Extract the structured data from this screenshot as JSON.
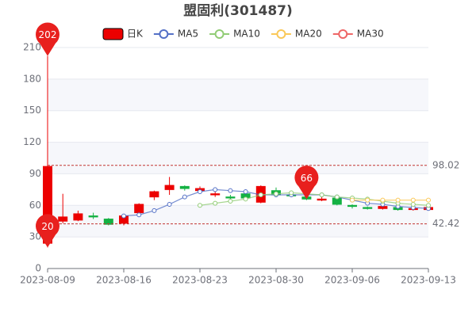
{
  "chart_data": {
    "type": "candlestick",
    "title": "盟固利(301487)",
    "categories": [
      "2023-08-09",
      null,
      null,
      null,
      null,
      "2023-08-16",
      null,
      null,
      null,
      null,
      "2023-08-23",
      null,
      null,
      null,
      null,
      "2023-08-30",
      null,
      null,
      null,
      null,
      "2023-09-06",
      null,
      null,
      null,
      null,
      "2023-09-13"
    ],
    "ylim": [
      0,
      210
    ],
    "yticks": [
      0,
      30,
      60,
      90,
      120,
      150,
      180,
      210
    ],
    "grid": true,
    "series": [
      {
        "name": "日K",
        "type": "candlestick",
        "up_color": "#ec0000",
        "down_color": "#14b143",
        "values": [
          [
            24,
            97,
            20,
            202
          ],
          [
            45,
            49,
            43,
            71
          ],
          [
            46,
            52,
            45,
            55
          ],
          [
            50,
            49,
            47,
            53
          ],
          [
            47,
            42,
            41,
            48
          ],
          [
            43,
            50,
            41,
            51
          ],
          [
            53,
            61,
            52,
            62
          ],
          [
            68,
            73,
            65,
            74
          ],
          [
            75,
            79,
            70,
            87
          ],
          [
            78,
            76,
            74,
            79
          ],
          [
            74,
            76,
            72,
            78
          ],
          [
            70,
            71,
            68,
            75
          ],
          [
            68,
            67,
            65,
            70
          ],
          [
            71,
            67,
            65,
            73
          ],
          [
            63,
            78,
            62,
            79
          ],
          [
            74,
            70,
            69,
            77
          ],
          [
            70,
            69,
            68,
            71
          ],
          [
            68,
            66,
            65,
            69
          ],
          [
            65,
            66,
            64,
            68
          ],
          [
            67,
            61,
            60,
            67
          ],
          [
            60,
            59,
            57,
            61
          ],
          [
            58,
            57,
            56,
            59
          ],
          [
            57,
            59,
            56,
            60
          ],
          [
            58,
            56,
            55,
            58
          ],
          [
            56,
            57,
            55,
            58
          ],
          [
            56,
            58,
            56,
            59
          ]
        ]
      },
      {
        "name": "MA5",
        "type": "line",
        "color": "#5470c6",
        "values": [
          null,
          null,
          null,
          null,
          null,
          50,
          51,
          55,
          61,
          68,
          73,
          75,
          74,
          73,
          70,
          70,
          70,
          70,
          70,
          68,
          65,
          62,
          61,
          59,
          58,
          57
        ]
      },
      {
        "name": "MA10",
        "type": "line",
        "color": "#91cc75",
        "values": [
          null,
          null,
          null,
          null,
          null,
          null,
          null,
          null,
          null,
          null,
          60,
          62,
          64,
          66,
          70,
          71,
          72,
          71,
          70,
          68,
          67,
          66,
          64,
          62,
          61,
          60
        ]
      },
      {
        "name": "MA20",
        "type": "line",
        "color": "#fac858",
        "values": [
          null,
          null,
          null,
          null,
          null,
          null,
          null,
          null,
          null,
          null,
          null,
          null,
          null,
          null,
          null,
          null,
          null,
          null,
          null,
          null,
          65,
          65,
          65,
          65,
          65,
          65
        ]
      },
      {
        "name": "MA30",
        "type": "line",
        "color": "#ee6666",
        "values": [
          null,
          null,
          null,
          null,
          null,
          null,
          null,
          null,
          null,
          null,
          null,
          null,
          null,
          null,
          null,
          null,
          null,
          null,
          null,
          null,
          null,
          null,
          null,
          null,
          null,
          null
        ]
      }
    ],
    "mark_lines": [
      98.02,
      42.42
    ],
    "mark_points": [
      202,
      20,
      66
    ]
  }
}
